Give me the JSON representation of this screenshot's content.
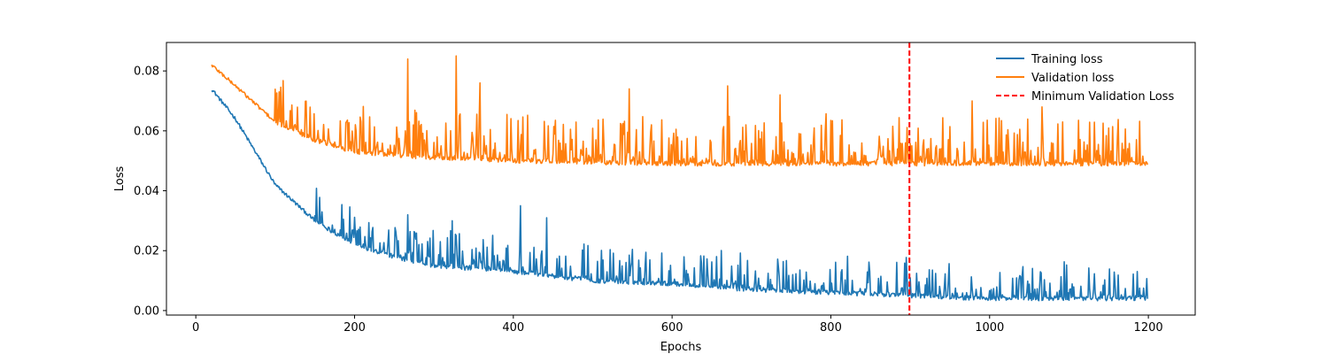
{
  "chart_data": {
    "type": "line",
    "title": "",
    "xlabel": "Epochs",
    "ylabel": "Loss",
    "xlim": [
      -37,
      1259
    ],
    "ylim": [
      -0.0015,
      0.0895
    ],
    "xticks": [
      0,
      200,
      400,
      600,
      800,
      1000,
      1200
    ],
    "xtick_labels": [
      "0",
      "200",
      "400",
      "600",
      "800",
      "1000",
      "1200"
    ],
    "yticks": [
      0.0,
      0.02,
      0.04,
      0.06,
      0.08
    ],
    "ytick_labels": [
      "0.00",
      "0.02",
      "0.04",
      "0.06",
      "0.08"
    ],
    "grid": false,
    "legend_position": "top-right",
    "legend_frame": false,
    "series": [
      {
        "name": "Training loss",
        "color": "#1f77b4",
        "style": "solid",
        "x_start": 20,
        "x_end": 1199,
        "trend_points": [
          [
            20,
            0.074
          ],
          [
            50,
            0.064
          ],
          [
            100,
            0.042
          ],
          [
            150,
            0.03
          ],
          [
            200,
            0.022
          ],
          [
            250,
            0.018
          ],
          [
            300,
            0.015
          ],
          [
            400,
            0.013
          ],
          [
            500,
            0.01
          ],
          [
            600,
            0.009
          ],
          [
            700,
            0.007
          ],
          [
            800,
            0.006
          ],
          [
            900,
            0.005
          ],
          [
            1000,
            0.004
          ],
          [
            1100,
            0.004
          ],
          [
            1199,
            0.004
          ]
        ],
        "noise_start_epoch": 150,
        "spike_max": 0.012,
        "notable_spikes": [
          [
            267,
            0.032
          ],
          [
            409,
            0.035
          ],
          [
            442,
            0.031
          ],
          [
            323,
            0.03
          ]
        ]
      },
      {
        "name": "Validation loss",
        "color": "#ff7f0e",
        "style": "solid",
        "x_start": 20,
        "x_end": 1199,
        "trend_points": [
          [
            20,
            0.082
          ],
          [
            50,
            0.075
          ],
          [
            100,
            0.063
          ],
          [
            150,
            0.057
          ],
          [
            200,
            0.053
          ],
          [
            300,
            0.051
          ],
          [
            400,
            0.05
          ],
          [
            600,
            0.049
          ],
          [
            800,
            0.049
          ],
          [
            900,
            0.049
          ],
          [
            1000,
            0.049
          ],
          [
            1199,
            0.049
          ]
        ],
        "noise_start_epoch": 100,
        "spike_max": 0.016,
        "notable_spikes": [
          [
            267,
            0.084
          ],
          [
            328,
            0.085
          ],
          [
            358,
            0.076
          ],
          [
            546,
            0.074
          ],
          [
            670,
            0.075
          ],
          [
            736,
            0.072
          ],
          [
            978,
            0.07
          ],
          [
            1066,
            0.068
          ],
          [
            105,
            0.073
          ]
        ]
      }
    ],
    "reference_lines": [
      {
        "name": "Minimum Validation Loss",
        "orientation": "vertical",
        "x": 899,
        "color": "#ff0000",
        "style": "dashed"
      }
    ]
  }
}
